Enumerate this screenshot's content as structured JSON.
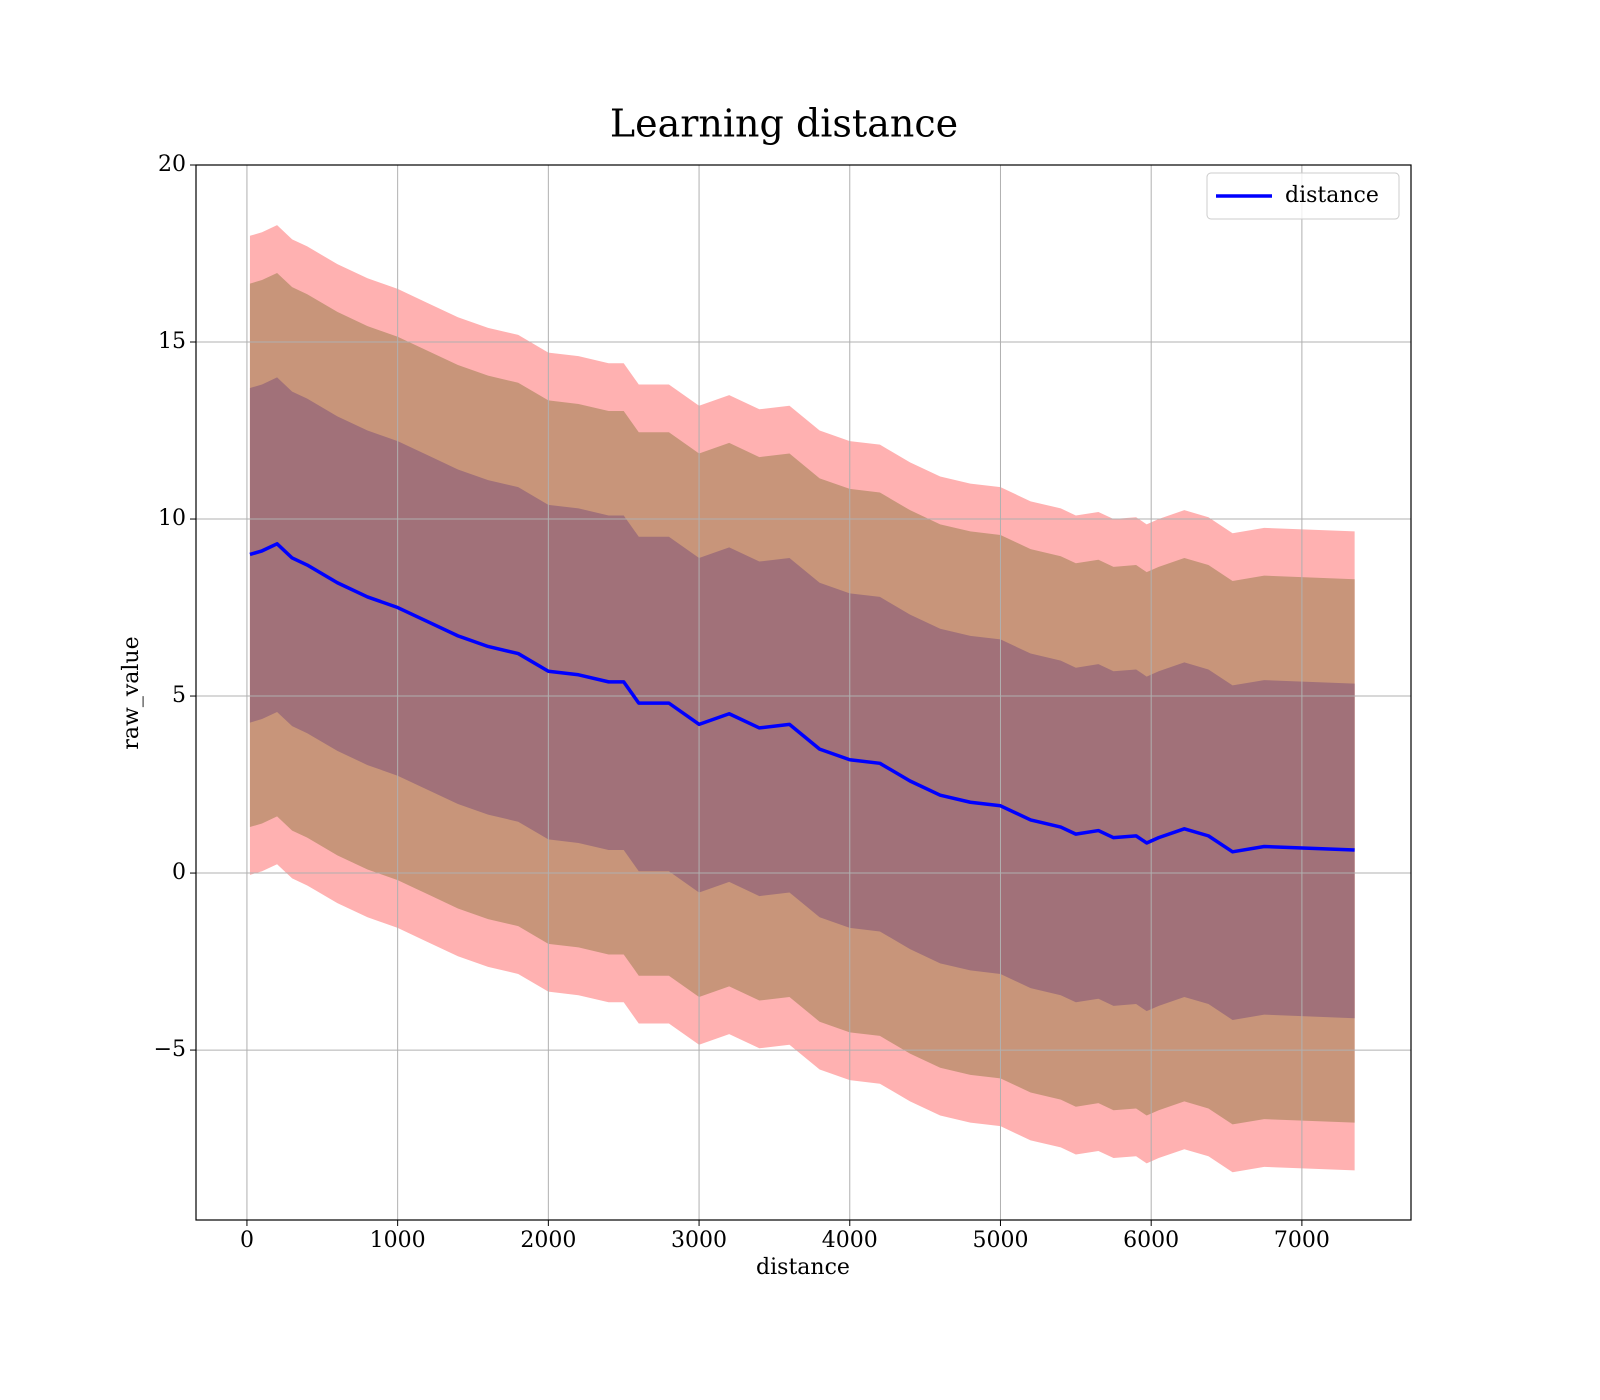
{
  "chart_data": {
    "type": "line",
    "title": "Learning distance",
    "xlabel": "distance",
    "ylabel": "raw_value",
    "x": [
      20,
      100,
      200,
      300,
      400,
      600,
      800,
      1000,
      1200,
      1400,
      1600,
      1800,
      2000,
      2200,
      2400,
      2500,
      2600,
      2800,
      3000,
      3200,
      3400,
      3600,
      3800,
      4000,
      4200,
      4400,
      4600,
      4800,
      5000,
      5200,
      5400,
      5500,
      5650,
      5750,
      5900,
      5970,
      6050,
      6220,
      6380,
      6540,
      6750,
      7350
    ],
    "series": [
      {
        "name": "distance",
        "color": "#0000ff",
        "values": [
          9.0,
          9.1,
          9.3,
          8.9,
          8.7,
          8.2,
          7.8,
          7.5,
          7.1,
          6.7,
          6.4,
          6.2,
          5.7,
          5.6,
          5.4,
          5.4,
          4.8,
          4.8,
          4.2,
          4.5,
          4.1,
          4.2,
          3.5,
          3.2,
          3.1,
          2.6,
          2.2,
          2.0,
          1.9,
          1.5,
          1.3,
          1.1,
          1.2,
          1.0,
          1.05,
          0.85,
          1.0,
          1.25,
          1.05,
          0.6,
          0.75,
          0.65
        ]
      }
    ],
    "bands": [
      {
        "color": "#ffb1b1",
        "upper": [
          18.0,
          18.1,
          18.3,
          17.9,
          17.7,
          17.2,
          16.8,
          16.5,
          16.1,
          15.7,
          15.4,
          15.2,
          14.7,
          14.6,
          14.4,
          14.4,
          13.8,
          13.8,
          13.2,
          13.5,
          13.1,
          13.2,
          12.5,
          12.2,
          12.1,
          11.6,
          11.2,
          11.0,
          10.9,
          10.5,
          10.3,
          10.1,
          10.2,
          10.0,
          10.05,
          9.85,
          10.0,
          10.25,
          10.05,
          9.6,
          9.75,
          9.65
        ],
        "lower": [
          -0.05,
          0.05,
          0.25,
          -0.15,
          -0.35,
          -0.85,
          -1.25,
          -1.55,
          -1.95,
          -2.35,
          -2.65,
          -2.85,
          -3.35,
          -3.45,
          -3.65,
          -3.65,
          -4.25,
          -4.25,
          -4.85,
          -4.55,
          -4.95,
          -4.85,
          -5.55,
          -5.85,
          -5.95,
          -6.45,
          -6.85,
          -7.05,
          -7.15,
          -7.55,
          -7.75,
          -7.95,
          -7.85,
          -8.05,
          -8.0,
          -8.2,
          -8.05,
          -7.8,
          -8.0,
          -8.45,
          -8.3,
          -8.4
        ]
      },
      {
        "color": "#c8957a",
        "upper": [
          16.65,
          16.75,
          16.95,
          16.55,
          16.35,
          15.85,
          15.45,
          15.15,
          14.75,
          14.35,
          14.05,
          13.85,
          13.35,
          13.25,
          13.05,
          13.05,
          12.45,
          12.45,
          11.85,
          12.15,
          11.75,
          11.85,
          11.15,
          10.85,
          10.75,
          10.25,
          9.85,
          9.65,
          9.55,
          9.15,
          8.95,
          8.75,
          8.85,
          8.65,
          8.7,
          8.5,
          8.65,
          8.9,
          8.7,
          8.25,
          8.4,
          8.3
        ],
        "lower": [
          1.3,
          1.4,
          1.6,
          1.2,
          1.0,
          0.5,
          0.1,
          -0.2,
          -0.6,
          -1.0,
          -1.3,
          -1.5,
          -2.0,
          -2.1,
          -2.3,
          -2.3,
          -2.9,
          -2.9,
          -3.5,
          -3.2,
          -3.6,
          -3.5,
          -4.2,
          -4.5,
          -4.6,
          -5.1,
          -5.5,
          -5.7,
          -5.8,
          -6.2,
          -6.4,
          -6.6,
          -6.5,
          -6.7,
          -6.65,
          -6.85,
          -6.7,
          -6.45,
          -6.65,
          -7.1,
          -6.95,
          -7.05
        ]
      },
      {
        "color": "#a17179",
        "upper": [
          13.7,
          13.8,
          14.0,
          13.6,
          13.4,
          12.9,
          12.5,
          12.2,
          11.8,
          11.4,
          11.1,
          10.9,
          10.4,
          10.3,
          10.1,
          10.1,
          9.5,
          9.5,
          8.9,
          9.2,
          8.8,
          8.9,
          8.2,
          7.9,
          7.8,
          7.3,
          6.9,
          6.7,
          6.6,
          6.2,
          6.0,
          5.8,
          5.9,
          5.7,
          5.75,
          5.55,
          5.7,
          5.95,
          5.75,
          5.3,
          5.45,
          5.35
        ],
        "lower": [
          4.25,
          4.35,
          4.55,
          4.15,
          3.95,
          3.45,
          3.05,
          2.75,
          2.35,
          1.95,
          1.65,
          1.45,
          0.95,
          0.85,
          0.65,
          0.65,
          0.05,
          0.05,
          -0.55,
          -0.25,
          -0.65,
          -0.55,
          -1.25,
          -1.55,
          -1.65,
          -2.15,
          -2.55,
          -2.75,
          -2.85,
          -3.25,
          -3.45,
          -3.65,
          -3.55,
          -3.75,
          -3.7,
          -3.9,
          -3.75,
          -3.5,
          -3.7,
          -4.15,
          -4.0,
          -4.1
        ]
      }
    ],
    "xlim": [
      -338,
      7724
    ],
    "ylim": [
      -9.8,
      20
    ],
    "xticks": [
      0,
      1000,
      2000,
      3000,
      4000,
      5000,
      6000,
      7000
    ],
    "yticks": [
      {
        "value": -5,
        "label": "−5"
      },
      0,
      5,
      10,
      15,
      20
    ],
    "grid": true,
    "legend": "upper right"
  }
}
